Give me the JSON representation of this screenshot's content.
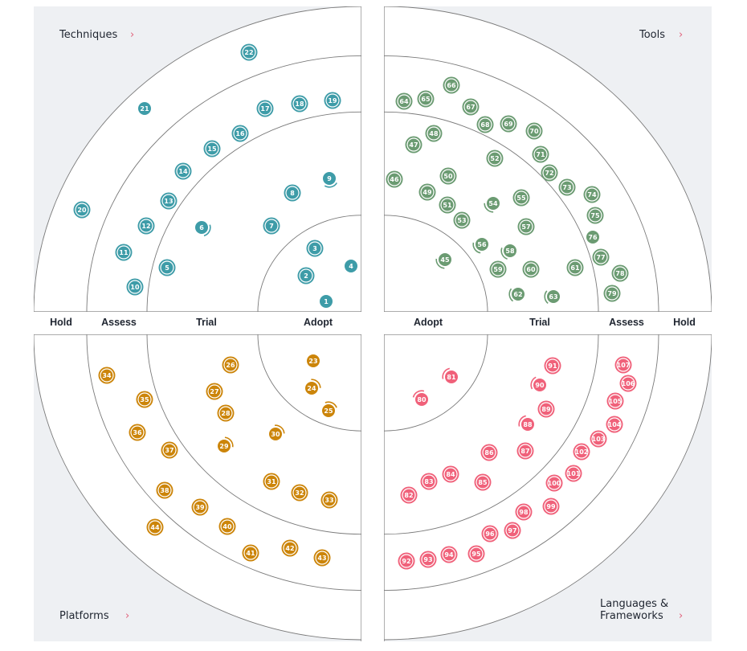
{
  "rings": [
    "Adopt",
    "Trial",
    "Assess",
    "Hold"
  ],
  "background_color": "#eef0f3",
  "line_color": "#7a7a7a",
  "accent_chevron_color": "#e0607a",
  "blip_marker_types": {
    "ring": "circle with outer ring",
    "new": "plain filled circle",
    "moved": "circle with partial arc"
  },
  "quadrants": [
    {
      "id": "techniques",
      "label": "Techniques",
      "chevron": "chevron-right-icon",
      "color": "#3e9ca8",
      "blips": [
        {
          "n": "1",
          "ring": "Adopt",
          "type": "new"
        },
        {
          "n": "2",
          "ring": "Adopt",
          "type": "ring"
        },
        {
          "n": "3",
          "ring": "Adopt",
          "type": "ring"
        },
        {
          "n": "4",
          "ring": "Adopt",
          "type": "new"
        },
        {
          "n": "5",
          "ring": "Trial",
          "type": "ring"
        },
        {
          "n": "6",
          "ring": "Trial",
          "type": "moved"
        },
        {
          "n": "7",
          "ring": "Trial",
          "type": "ring"
        },
        {
          "n": "8",
          "ring": "Trial",
          "type": "ring"
        },
        {
          "n": "9",
          "ring": "Trial",
          "type": "moved"
        },
        {
          "n": "10",
          "ring": "Assess",
          "type": "ring"
        },
        {
          "n": "11",
          "ring": "Assess",
          "type": "ring"
        },
        {
          "n": "12",
          "ring": "Assess",
          "type": "ring"
        },
        {
          "n": "13",
          "ring": "Assess",
          "type": "ring"
        },
        {
          "n": "14",
          "ring": "Assess",
          "type": "ring"
        },
        {
          "n": "15",
          "ring": "Assess",
          "type": "ring"
        },
        {
          "n": "16",
          "ring": "Assess",
          "type": "ring"
        },
        {
          "n": "17",
          "ring": "Assess",
          "type": "ring"
        },
        {
          "n": "18",
          "ring": "Assess",
          "type": "ring"
        },
        {
          "n": "19",
          "ring": "Assess",
          "type": "ring"
        },
        {
          "n": "20",
          "ring": "Hold",
          "type": "ring"
        },
        {
          "n": "21",
          "ring": "Hold",
          "type": "new"
        },
        {
          "n": "22",
          "ring": "Hold",
          "type": "ring"
        }
      ]
    },
    {
      "id": "tools",
      "label": "Tools",
      "chevron": "chevron-right-icon",
      "color": "#6b9b72",
      "blips": [
        {
          "n": "45",
          "ring": "Adopt",
          "type": "moved"
        },
        {
          "n": "46",
          "ring": "Trial",
          "type": "ring"
        },
        {
          "n": "47",
          "ring": "Trial",
          "type": "ring"
        },
        {
          "n": "48",
          "ring": "Trial",
          "type": "ring"
        },
        {
          "n": "49",
          "ring": "Trial",
          "type": "ring"
        },
        {
          "n": "50",
          "ring": "Trial",
          "type": "ring"
        },
        {
          "n": "51",
          "ring": "Trial",
          "type": "ring"
        },
        {
          "n": "52",
          "ring": "Trial",
          "type": "ring"
        },
        {
          "n": "53",
          "ring": "Trial",
          "type": "ring"
        },
        {
          "n": "54",
          "ring": "Trial",
          "type": "moved"
        },
        {
          "n": "55",
          "ring": "Trial",
          "type": "ring"
        },
        {
          "n": "56",
          "ring": "Trial",
          "type": "moved"
        },
        {
          "n": "57",
          "ring": "Trial",
          "type": "ring"
        },
        {
          "n": "58",
          "ring": "Trial",
          "type": "moved"
        },
        {
          "n": "59",
          "ring": "Trial",
          "type": "ring"
        },
        {
          "n": "60",
          "ring": "Trial",
          "type": "ring"
        },
        {
          "n": "61",
          "ring": "Trial",
          "type": "ring"
        },
        {
          "n": "62",
          "ring": "Trial",
          "type": "moved"
        },
        {
          "n": "63",
          "ring": "Trial",
          "type": "moved"
        },
        {
          "n": "64",
          "ring": "Assess",
          "type": "ring"
        },
        {
          "n": "65",
          "ring": "Assess",
          "type": "ring"
        },
        {
          "n": "66",
          "ring": "Assess",
          "type": "ring"
        },
        {
          "n": "67",
          "ring": "Assess",
          "type": "ring"
        },
        {
          "n": "68",
          "ring": "Assess",
          "type": "ring"
        },
        {
          "n": "69",
          "ring": "Assess",
          "type": "ring"
        },
        {
          "n": "70",
          "ring": "Assess",
          "type": "ring"
        },
        {
          "n": "71",
          "ring": "Assess",
          "type": "ring"
        },
        {
          "n": "72",
          "ring": "Assess",
          "type": "ring"
        },
        {
          "n": "73",
          "ring": "Assess",
          "type": "ring"
        },
        {
          "n": "74",
          "ring": "Assess",
          "type": "ring"
        },
        {
          "n": "75",
          "ring": "Assess",
          "type": "ring"
        },
        {
          "n": "76",
          "ring": "Assess",
          "type": "new"
        },
        {
          "n": "77",
          "ring": "Assess",
          "type": "ring"
        },
        {
          "n": "78",
          "ring": "Assess",
          "type": "ring"
        },
        {
          "n": "79",
          "ring": "Assess",
          "type": "ring"
        }
      ]
    },
    {
      "id": "platforms",
      "label": "Platforms",
      "chevron": "chevron-right-icon",
      "color": "#cc850a",
      "blips": [
        {
          "n": "23",
          "ring": "Adopt",
          "type": "new"
        },
        {
          "n": "24",
          "ring": "Adopt",
          "type": "moved"
        },
        {
          "n": "25",
          "ring": "Adopt",
          "type": "moved"
        },
        {
          "n": "26",
          "ring": "Trial",
          "type": "ring"
        },
        {
          "n": "27",
          "ring": "Trial",
          "type": "ring"
        },
        {
          "n": "28",
          "ring": "Trial",
          "type": "ring"
        },
        {
          "n": "29",
          "ring": "Trial",
          "type": "moved"
        },
        {
          "n": "30",
          "ring": "Trial",
          "type": "moved"
        },
        {
          "n": "31",
          "ring": "Trial",
          "type": "ring"
        },
        {
          "n": "32",
          "ring": "Trial",
          "type": "ring"
        },
        {
          "n": "33",
          "ring": "Trial",
          "type": "ring"
        },
        {
          "n": "34",
          "ring": "Assess",
          "type": "ring"
        },
        {
          "n": "35",
          "ring": "Assess",
          "type": "ring"
        },
        {
          "n": "36",
          "ring": "Assess",
          "type": "ring"
        },
        {
          "n": "37",
          "ring": "Assess",
          "type": "ring"
        },
        {
          "n": "38",
          "ring": "Assess",
          "type": "ring"
        },
        {
          "n": "39",
          "ring": "Assess",
          "type": "ring"
        },
        {
          "n": "40",
          "ring": "Assess",
          "type": "ring"
        },
        {
          "n": "41",
          "ring": "Assess",
          "type": "ring"
        },
        {
          "n": "42",
          "ring": "Assess",
          "type": "ring"
        },
        {
          "n": "43",
          "ring": "Assess",
          "type": "ring"
        },
        {
          "n": "44",
          "ring": "Hold",
          "type": "ring"
        }
      ]
    },
    {
      "id": "languages-frameworks",
      "label_lines": [
        "Languages &",
        "Frameworks"
      ],
      "chevron": "chevron-right-icon",
      "color": "#f0617a",
      "blips": [
        {
          "n": "80",
          "ring": "Adopt",
          "type": "moved"
        },
        {
          "n": "81",
          "ring": "Adopt",
          "type": "moved"
        },
        {
          "n": "82",
          "ring": "Trial",
          "type": "ring"
        },
        {
          "n": "83",
          "ring": "Trial",
          "type": "ring"
        },
        {
          "n": "84",
          "ring": "Trial",
          "type": "ring"
        },
        {
          "n": "85",
          "ring": "Trial",
          "type": "ring"
        },
        {
          "n": "86",
          "ring": "Trial",
          "type": "ring"
        },
        {
          "n": "87",
          "ring": "Trial",
          "type": "ring"
        },
        {
          "n": "88",
          "ring": "Trial",
          "type": "moved"
        },
        {
          "n": "89",
          "ring": "Trial",
          "type": "ring"
        },
        {
          "n": "90",
          "ring": "Trial",
          "type": "moved"
        },
        {
          "n": "91",
          "ring": "Trial",
          "type": "ring"
        },
        {
          "n": "92",
          "ring": "Assess",
          "type": "ring"
        },
        {
          "n": "93",
          "ring": "Assess",
          "type": "ring"
        },
        {
          "n": "94",
          "ring": "Assess",
          "type": "ring"
        },
        {
          "n": "95",
          "ring": "Assess",
          "type": "ring"
        },
        {
          "n": "96",
          "ring": "Assess",
          "type": "ring"
        },
        {
          "n": "97",
          "ring": "Assess",
          "type": "ring"
        },
        {
          "n": "98",
          "ring": "Assess",
          "type": "ring"
        },
        {
          "n": "99",
          "ring": "Assess",
          "type": "ring"
        },
        {
          "n": "100",
          "ring": "Assess",
          "type": "ring"
        },
        {
          "n": "101",
          "ring": "Assess",
          "type": "ring"
        },
        {
          "n": "102",
          "ring": "Assess",
          "type": "ring"
        },
        {
          "n": "103",
          "ring": "Assess",
          "type": "ring"
        },
        {
          "n": "104",
          "ring": "Assess",
          "type": "ring"
        },
        {
          "n": "105",
          "ring": "Assess",
          "type": "ring"
        },
        {
          "n": "106",
          "ring": "Assess",
          "type": "ring"
        },
        {
          "n": "107",
          "ring": "Assess",
          "type": "ring"
        }
      ]
    }
  ]
}
